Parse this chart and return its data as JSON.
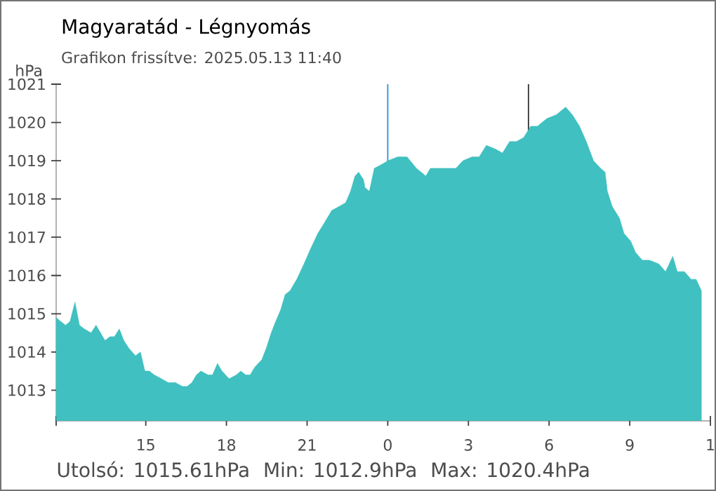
{
  "chart_data": {
    "type": "area",
    "title": "Magyaratád - Légnyomás",
    "subtitle": "Grafikon frissítve: 2025.05.13 11:40",
    "ylabel": "hPa",
    "annotations": [
      "Utolsó: 1015.61hPa",
      "Min: 1012.9hPa",
      "Max: 1020.4hPa"
    ],
    "color": "#40c0c0",
    "grid": false,
    "marker": "none",
    "xlim": [
      "2025-05-12T11:40",
      "2025-05-13T12:00"
    ],
    "ylim": [
      1012.2,
      1021
    ],
    "xticks": [
      {
        "value": "2025-05-12T11:40",
        "label": null
      },
      {
        "value": "2025-05-12T15:00",
        "label": "15"
      },
      {
        "value": "2025-05-12T18:00",
        "label": "18"
      },
      {
        "value": "2025-05-12T21:00",
        "label": "21"
      },
      {
        "value": "2025-05-13T00:00",
        "label": "0"
      },
      {
        "value": "2025-05-13T03:00",
        "label": "3"
      },
      {
        "value": "2025-05-13T06:00",
        "label": "6"
      },
      {
        "value": "2025-05-13T09:00",
        "label": "9"
      },
      {
        "value": "2025-05-13T12:00",
        "label": "1"
      }
    ],
    "yticks": [
      1013,
      1014,
      1015,
      1016,
      1017,
      1018,
      1019,
      1020,
      1021
    ],
    "ref_lines": [
      {
        "axis": "x",
        "value": "2025-05-13T00:00",
        "color": "#2e8fd6"
      },
      {
        "axis": "x",
        "value": "2025-05-13T05:14",
        "color": "#333333"
      }
    ],
    "x": [
      "2025-05-12T11:40",
      "2025-05-12T11:50",
      "2025-05-12T12:01",
      "2025-05-12T12:11",
      "2025-05-12T12:22",
      "2025-05-12T12:32",
      "2025-05-12T12:43",
      "2025-05-12T12:58",
      "2025-05-12T13:09",
      "2025-05-12T13:19",
      "2025-05-12T13:29",
      "2025-05-12T13:40",
      "2025-05-12T13:50",
      "2025-05-12T14:01",
      "2025-05-12T14:11",
      "2025-05-12T14:22",
      "2025-05-12T14:37",
      "2025-05-12T14:48",
      "2025-05-12T14:58",
      "2025-05-12T15:08",
      "2025-05-12T15:19",
      "2025-05-12T15:35",
      "2025-05-12T15:50",
      "2025-05-12T16:06",
      "2025-05-12T16:22",
      "2025-05-12T16:32",
      "2025-05-12T16:43",
      "2025-05-12T16:53",
      "2025-05-12T17:03",
      "2025-05-12T17:19",
      "2025-05-12T17:29",
      "2025-05-12T17:40",
      "2025-05-12T17:50",
      "2025-05-12T18:06",
      "2025-05-12T18:22",
      "2025-05-12T18:32",
      "2025-05-12T18:43",
      "2025-05-12T18:53",
      "2025-05-12T19:03",
      "2025-05-12T19:19",
      "2025-05-12T19:29",
      "2025-05-12T19:40",
      "2025-05-12T19:50",
      "2025-05-12T20:01",
      "2025-05-12T20:11",
      "2025-05-12T20:22",
      "2025-05-12T20:37",
      "2025-05-12T20:53",
      "2025-05-12T21:08",
      "2025-05-12T21:24",
      "2025-05-12T21:40",
      "2025-05-12T21:55",
      "2025-05-12T22:11",
      "2025-05-12T22:26",
      "2025-05-12T22:37",
      "2025-05-12T22:47",
      "2025-05-12T22:55",
      "2025-05-12T23:06",
      "2025-05-12T23:09",
      "2025-05-12T23:19",
      "2025-05-12T23:30",
      "2025-05-12T23:46",
      "2025-05-13T00:01",
      "2025-05-13T00:22",
      "2025-05-13T00:43",
      "2025-05-13T01:04",
      "2025-05-13T01:25",
      "2025-05-13T01:35",
      "2025-05-13T01:56",
      "2025-05-13T02:16",
      "2025-05-13T02:32",
      "2025-05-13T02:48",
      "2025-05-13T03:08",
      "2025-05-13T03:24",
      "2025-05-13T03:40",
      "2025-05-13T04:01",
      "2025-05-13T04:16",
      "2025-05-13T04:32",
      "2025-05-13T04:47",
      "2025-05-13T05:03",
      "2025-05-13T05:19",
      "2025-05-13T05:34",
      "2025-05-13T05:55",
      "2025-05-13T06:16",
      "2025-05-13T06:37",
      "2025-05-13T06:52",
      "2025-05-13T07:08",
      "2025-05-13T07:23",
      "2025-05-13T07:39",
      "2025-05-13T07:55",
      "2025-05-13T08:05",
      "2025-05-13T08:10",
      "2025-05-13T08:21",
      "2025-05-13T08:37",
      "2025-05-13T08:47",
      "2025-05-13T09:02",
      "2025-05-13T09:13",
      "2025-05-13T09:28",
      "2025-05-13T09:44",
      "2025-05-13T10:05",
      "2025-05-13T10:20",
      "2025-05-13T10:36",
      "2025-05-13T10:46",
      "2025-05-13T11:02",
      "2025-05-13T11:17",
      "2025-05-13T11:28",
      "2025-05-13T11:40"
    ],
    "values": [
      1014.9,
      1014.8,
      1014.7,
      1014.8,
      1015.3,
      1014.7,
      1014.6,
      1014.5,
      1014.7,
      1014.5,
      1014.3,
      1014.4,
      1014.4,
      1014.6,
      1014.3,
      1014.1,
      1013.9,
      1014.0,
      1013.5,
      1013.5,
      1013.4,
      1013.3,
      1013.2,
      1013.2,
      1013.1,
      1013.1,
      1013.2,
      1013.4,
      1013.5,
      1013.4,
      1013.4,
      1013.7,
      1013.5,
      1013.3,
      1013.4,
      1013.5,
      1013.4,
      1013.4,
      1013.6,
      1013.8,
      1014.1,
      1014.5,
      1014.8,
      1015.1,
      1015.5,
      1015.6,
      1015.9,
      1016.3,
      1016.7,
      1017.1,
      1017.4,
      1017.7,
      1017.8,
      1017.9,
      1018.2,
      1018.6,
      1018.7,
      1018.5,
      1018.3,
      1018.2,
      1018.8,
      1018.9,
      1019.0,
      1019.1,
      1019.1,
      1018.8,
      1018.6,
      1018.8,
      1018.8,
      1018.8,
      1018.8,
      1019.0,
      1019.1,
      1019.1,
      1019.4,
      1019.3,
      1019.2,
      1019.5,
      1019.5,
      1019.6,
      1019.9,
      1019.9,
      1020.1,
      1020.2,
      1020.4,
      1020.2,
      1019.9,
      1019.5,
      1019.0,
      1018.8,
      1018.7,
      1018.2,
      1017.8,
      1017.5,
      1017.1,
      1016.9,
      1016.6,
      1016.4,
      1016.4,
      1016.3,
      1016.1,
      1016.5,
      1016.1,
      1016.1,
      1015.9,
      1015.9,
      1015.6
    ]
  }
}
